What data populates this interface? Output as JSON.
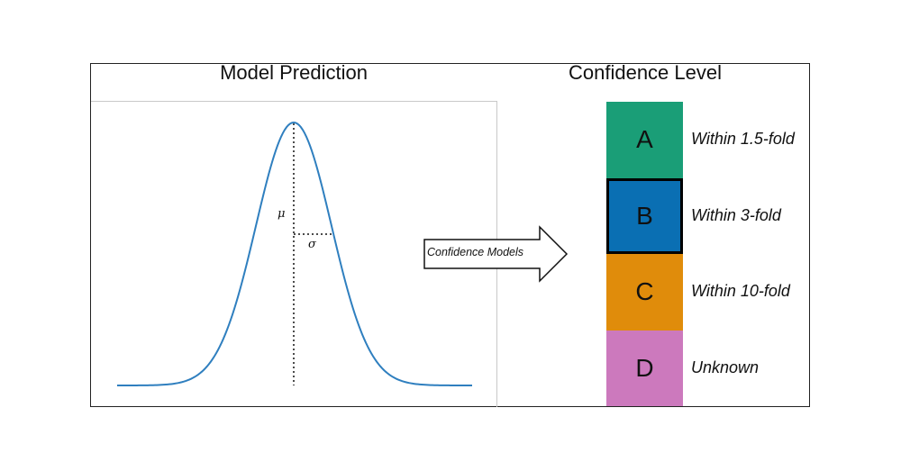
{
  "left_panel": {
    "title": "Model Prediction",
    "mu_label": "μ",
    "sigma_label": "σ",
    "curve_color": "#2f7fbf"
  },
  "arrow": {
    "label": "Confidence Models"
  },
  "right_panel": {
    "title": "Confidence Level",
    "levels": [
      {
        "letter": "A",
        "description": "Within 1.5-fold",
        "color": "#1a9e77"
      },
      {
        "letter": "B",
        "description": "Within 3-fold",
        "color": "#0a6fb3",
        "highlighted": true
      },
      {
        "letter": "C",
        "description": "Within 10-fold",
        "color": "#e08c0b"
      },
      {
        "letter": "D",
        "description": "Unknown",
        "color": "#cc79bd"
      }
    ]
  }
}
